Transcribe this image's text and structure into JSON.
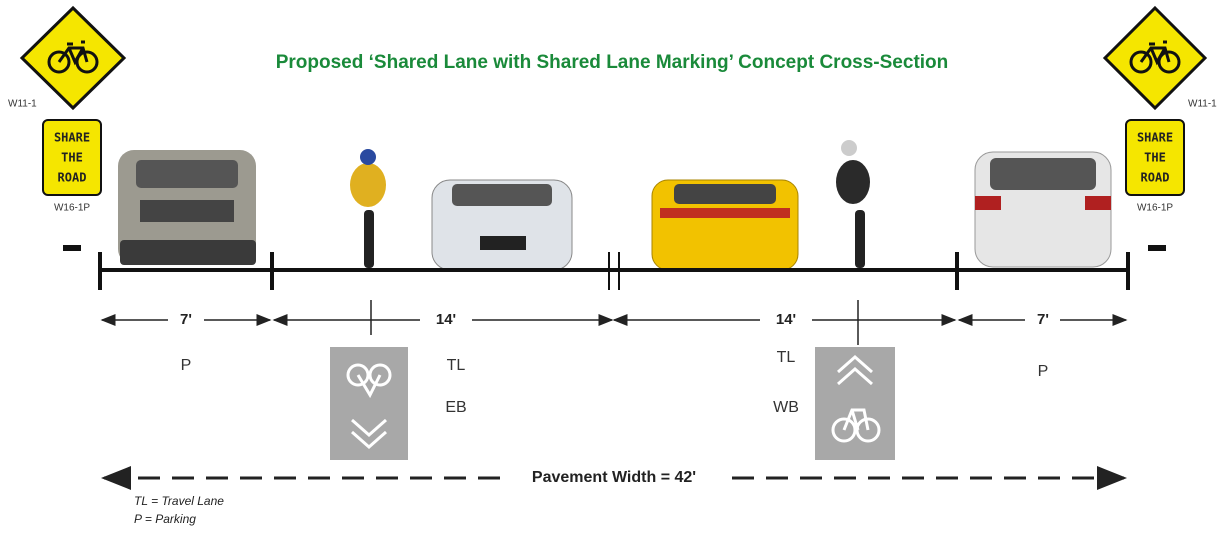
{
  "title": "Proposed ‘Shared Lane with Shared Lane Marking’ Concept Cross-Section",
  "signs": [
    {
      "code": "W11-1",
      "plaque": [
        "SHARE",
        "THE",
        "ROAD"
      ],
      "plaque_code": "W16-1P"
    },
    {
      "code": "W11-1",
      "plaque": [
        "SHARE",
        "THE",
        "ROAD"
      ],
      "plaque_code": "W16-1P"
    }
  ],
  "dimensions": [
    "7'",
    "14'",
    "14'",
    "7'"
  ],
  "lanes": [
    {
      "labels": [
        "P"
      ]
    },
    {
      "labels": [
        "TL",
        "EB"
      ]
    },
    {
      "labels": [
        "TL",
        "WB"
      ]
    },
    {
      "labels": [
        "P"
      ]
    }
  ],
  "pavement_width": "Pavement Width = 42'",
  "legend": [
    "TL = Travel Lane",
    "P = Parking"
  ]
}
